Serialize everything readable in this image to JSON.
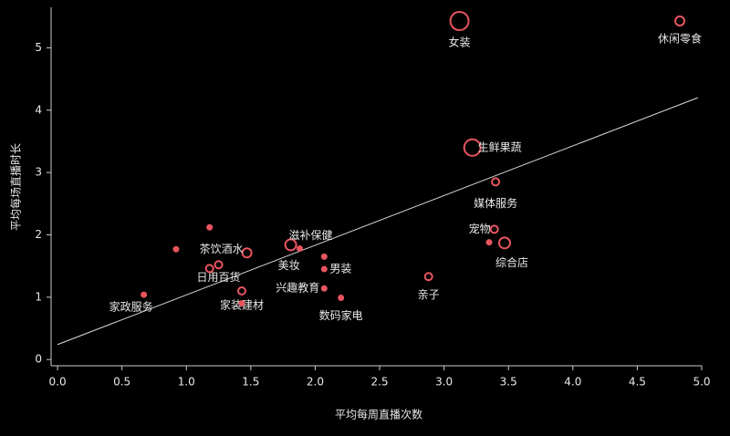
{
  "chart_data": {
    "type": "bubble",
    "xlabel": "平均每周直播次数",
    "ylabel": "平均每场直播时长",
    "color": "#e8555f",
    "trend_color": "#dddddd",
    "xlim": [
      -0.05,
      5.0
    ],
    "ylim": [
      -0.1,
      5.65
    ],
    "xticks": [
      {
        "value": 0,
        "label": "0.0"
      },
      {
        "value": 0.5,
        "label": "0.5"
      },
      {
        "value": 1,
        "label": "1.0"
      },
      {
        "value": 1.5,
        "label": "1.5"
      },
      {
        "value": 2,
        "label": "2.0"
      },
      {
        "value": 2.5,
        "label": "2.5"
      },
      {
        "value": 3,
        "label": "3.0"
      },
      {
        "value": 3.5,
        "label": "3.5"
      },
      {
        "value": 4,
        "label": "4.0"
      },
      {
        "value": 4.5,
        "label": "4.5"
      },
      {
        "value": 5,
        "label": "5.0"
      }
    ],
    "yticks": [
      0,
      1,
      2,
      3,
      4,
      5
    ],
    "points": {
      "labels": [
        "女装",
        "休闲零食",
        "生鲜果蔬",
        "媒体服务",
        "宠物",
        null,
        "综合店",
        "亲子",
        "数码家电",
        "兴趣教育",
        "男装",
        null,
        "美妆",
        "滋补保健",
        "茶饮酒水",
        "日用百货",
        null,
        null,
        null,
        "家装建材",
        null,
        "家政服务"
      ],
      "x": [
        3.12,
        4.83,
        3.22,
        3.4,
        3.39,
        3.35,
        3.47,
        2.88,
        2.2,
        2.07,
        2.07,
        2.07,
        1.81,
        1.88,
        1.47,
        1.25,
        1.18,
        1.18,
        0.92,
        1.43,
        1.43,
        0.67
      ],
      "y": [
        5.43,
        5.43,
        3.4,
        2.85,
        2.09,
        1.88,
        1.87,
        1.33,
        0.99,
        1.14,
        1.45,
        1.65,
        1.84,
        1.78,
        1.71,
        1.52,
        1.46,
        2.12,
        1.77,
        1.1,
        0.9,
        1.04
      ],
      "sizes": [
        10,
        5,
        9,
        4,
        4,
        2.5,
        6,
        4,
        2.5,
        2.5,
        2.5,
        2.5,
        6,
        2.5,
        5,
        4,
        4,
        2.5,
        2.5,
        4,
        2.5,
        2.5
      ]
    },
    "trendline": {
      "x": [
        0,
        4.97
      ],
      "y": [
        0.24,
        4.2
      ]
    }
  }
}
